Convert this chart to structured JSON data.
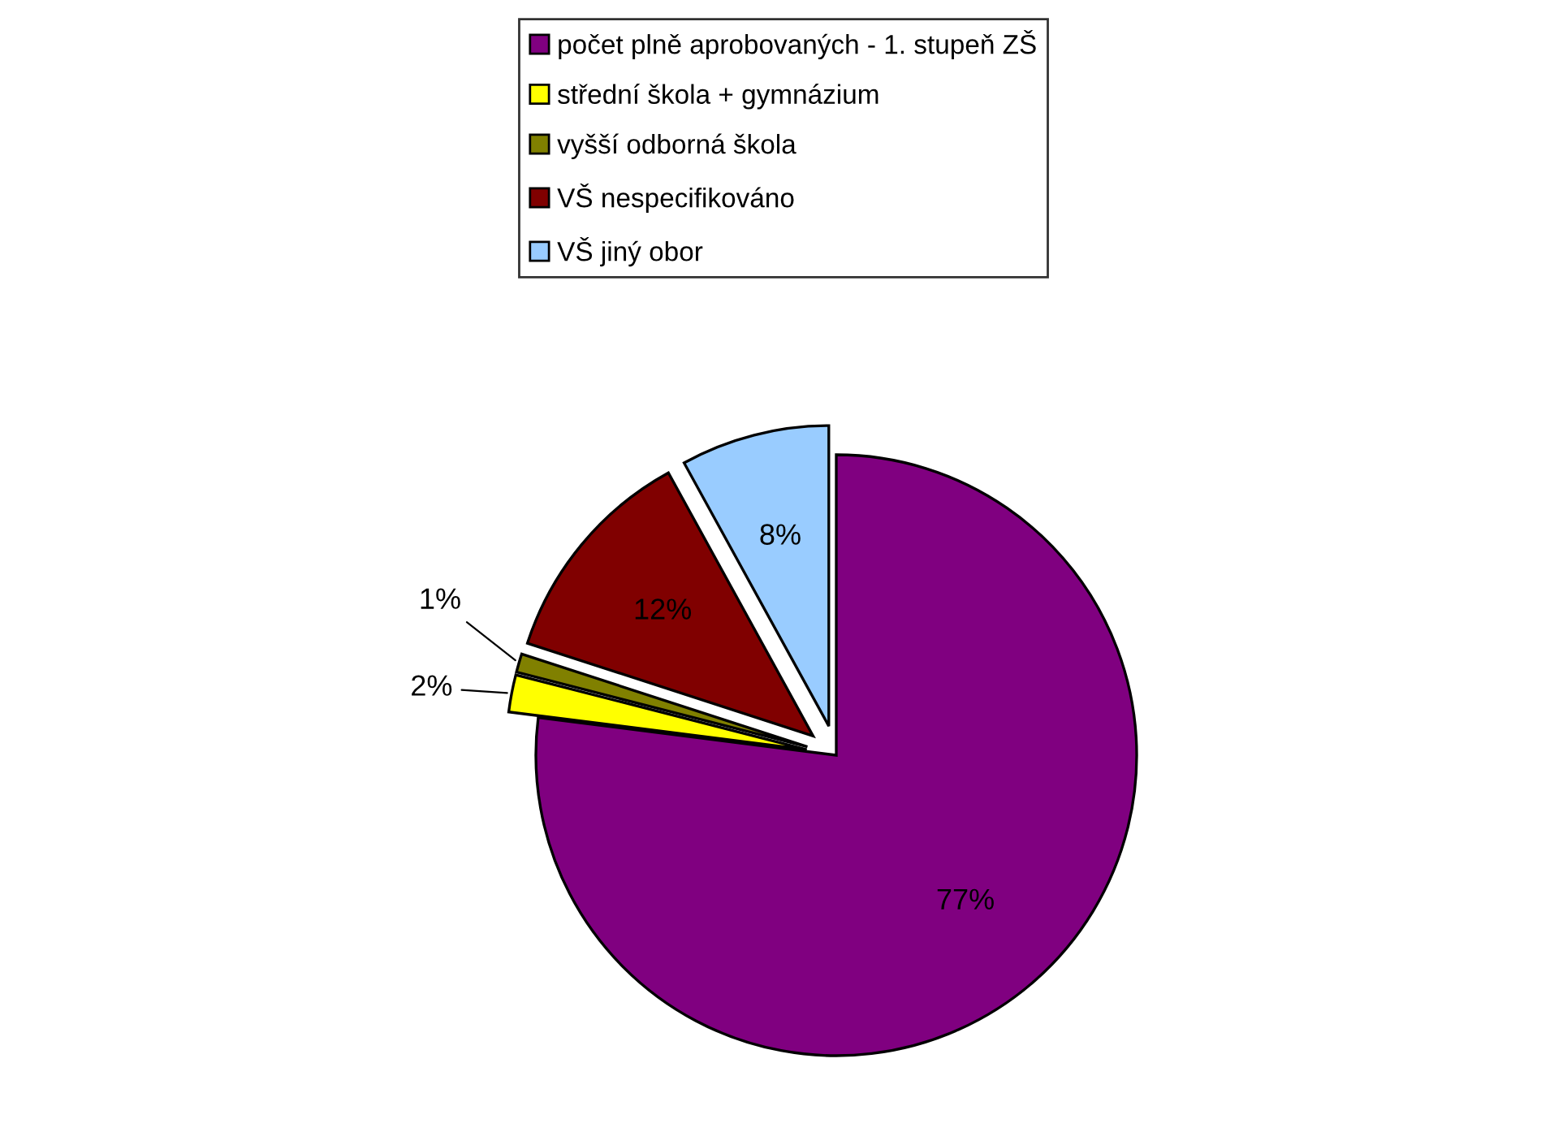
{
  "chart_data": {
    "type": "pie",
    "categories": [
      "počet plně aprobovaných - 1. stupeň ZŠ",
      "střední škola + gymnázium",
      "vyšší odborná škola",
      "VŠ nespecifikováno",
      "VŠ jiný obor"
    ],
    "values": [
      77,
      2,
      1,
      12,
      8
    ],
    "colors": [
      "#800080",
      "#ffff00",
      "#808000",
      "#800000",
      "#99ccff"
    ],
    "value_labels": [
      "77%",
      "2%",
      "1%",
      "12%",
      "8%"
    ],
    "legend": "top"
  }
}
